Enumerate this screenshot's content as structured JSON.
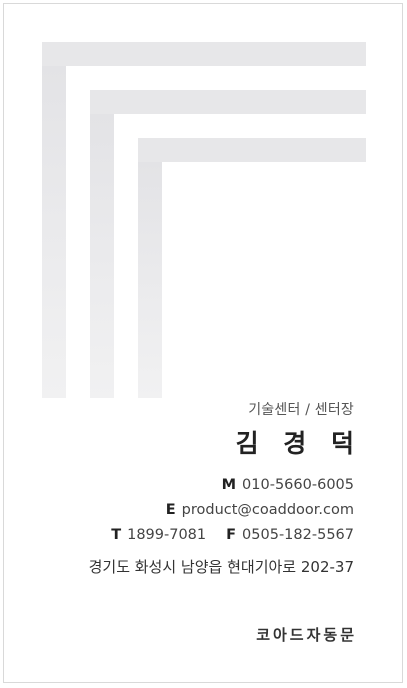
{
  "card": {
    "job_title": "기술센터 / 센터장",
    "name": "김 경 덕",
    "mobile_label": "M",
    "mobile": "010-5660-6005",
    "email_label": "E",
    "email": "product@coaddoor.com",
    "tel_label": "T",
    "tel": "1899-7081",
    "fax_label": "F",
    "fax": "0505-182-5567",
    "address": "경기도 화성시 남양읍 현대기아로 202-37",
    "company": "코아드자동문"
  },
  "colors": {
    "graphic": "#e7e7e9",
    "text": "#222222",
    "border": "#d9d9d9"
  }
}
